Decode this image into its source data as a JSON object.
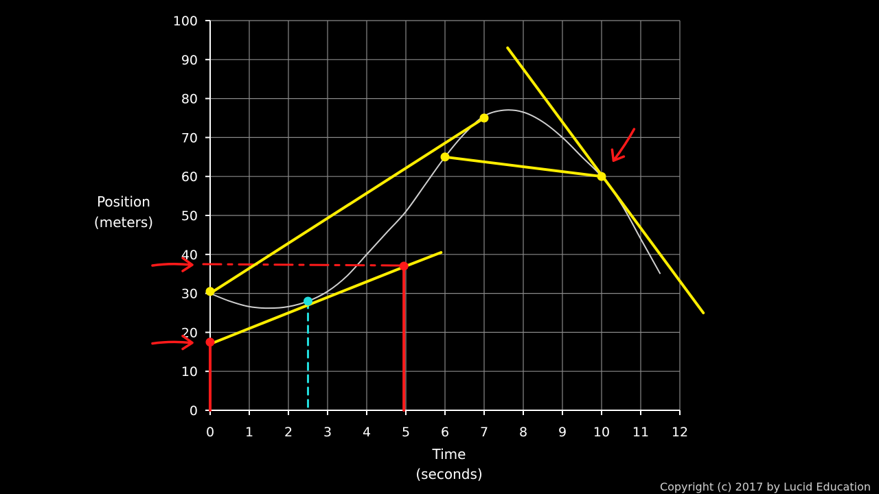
{
  "chart_data": {
    "type": "line",
    "xlabel": [
      "Time",
      "(seconds)"
    ],
    "ylabel": [
      "Position",
      "(meters)"
    ],
    "xlim": [
      0,
      12
    ],
    "ylim": [
      0,
      100
    ],
    "x_ticks": [
      0,
      1,
      2,
      3,
      4,
      5,
      6,
      7,
      8,
      9,
      10,
      11,
      12
    ],
    "y_ticks": [
      0,
      10,
      20,
      30,
      40,
      50,
      60,
      70,
      80,
      90,
      100
    ],
    "grid": true,
    "curve": {
      "color": "#d0d0d0",
      "x": [
        0,
        0.5,
        1,
        1.5,
        2,
        2.5,
        3,
        3.5,
        4,
        4.5,
        5,
        5.5,
        6,
        6.5,
        7,
        7.5,
        8,
        8.5,
        9,
        9.5,
        10,
        10.5,
        11,
        11.5
      ],
      "y": [
        30,
        28,
        26.6,
        26.2,
        26.6,
        28,
        30.5,
        34.5,
        40,
        45.5,
        51,
        58,
        65,
        71,
        75.5,
        77,
        76.5,
        74,
        70,
        65,
        60,
        53,
        44,
        35
      ]
    },
    "annotations": {
      "secant_lines": [
        {
          "color": "#ffee00",
          "from": [
            0,
            30
          ],
          "to": [
            7,
            75
          ]
        },
        {
          "color": "#ffee00",
          "from": [
            6,
            65
          ],
          "to": [
            10,
            60
          ]
        }
      ],
      "tangent_lines": [
        {
          "color": "#ffee00",
          "from": [
            0,
            17
          ],
          "to": [
            5,
            37
          ]
        },
        {
          "color": "#ffee00",
          "from": [
            5,
            37
          ],
          "to": [
            5.9,
            40.5
          ]
        },
        {
          "color": "#ffee00",
          "from": [
            7.6,
            93
          ],
          "to": [
            12.6,
            25
          ]
        }
      ],
      "points": [
        {
          "color": "#ffee00",
          "x": 0,
          "y": 30.5
        },
        {
          "color": "#ffee00",
          "x": 7,
          "y": 75
        },
        {
          "color": "#ffee00",
          "x": 6,
          "y": 65
        },
        {
          "color": "#ffee00",
          "x": 10,
          "y": 60
        },
        {
          "color": "#ff1a1a",
          "x": 0,
          "y": 17.5
        },
        {
          "color": "#ff1a1a",
          "x": 4.95,
          "y": 37
        },
        {
          "color": "#22dddd",
          "x": 2.5,
          "y": 28
        }
      ],
      "vertical_marks": [
        {
          "color": "#ff1a1a",
          "x": 0,
          "y_from": 17.5,
          "y_to": 0,
          "style": "solid"
        },
        {
          "color": "#ff1a1a",
          "x": 4.95,
          "y_from": 37,
          "y_to": 0,
          "style": "solid"
        },
        {
          "color": "#22dddd",
          "x": 2.5,
          "y_from": 28,
          "y_to": 0,
          "style": "dashed"
        }
      ],
      "horizontal_marks": [
        {
          "color": "#ff1a1a",
          "y": 37.5,
          "x_from": 0,
          "x_to": 4.95,
          "style": "dashed"
        }
      ],
      "arrows": [
        {
          "color": "#ff1a1a",
          "target": [
            0,
            37.5
          ],
          "direction": "right"
        },
        {
          "color": "#ff1a1a",
          "target": [
            0,
            17.5
          ],
          "direction": "right"
        },
        {
          "color": "#ff1a1a",
          "target": [
            10.2,
            63
          ],
          "direction": "down-left"
        }
      ]
    }
  },
  "copyright": "Copyright (c) 2017 by Lucid Education"
}
